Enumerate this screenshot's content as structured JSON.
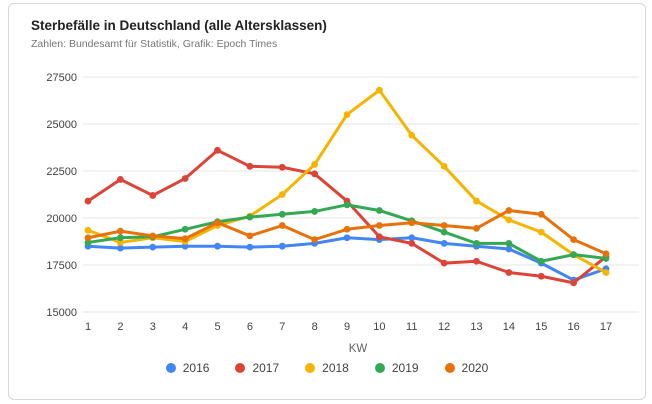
{
  "chart_data": {
    "type": "line",
    "title": "Sterbefälle in Deutschland (alle Altersklassen)",
    "subtitle": "Zahlen: Bundesamt für Statistik, Grafik: Epoch Times",
    "xlabel": "KW",
    "x": [
      1,
      2,
      3,
      4,
      5,
      6,
      7,
      8,
      9,
      10,
      11,
      12,
      13,
      14,
      15,
      16,
      17
    ],
    "ylim": [
      15000,
      27500
    ],
    "yticks": [
      15000,
      17500,
      20000,
      22500,
      25000,
      27500
    ],
    "grid": true,
    "legend_position": "bottom",
    "series": [
      {
        "name": "2016",
        "color": "#4285F4",
        "values": [
          18500,
          18400,
          18450,
          18500,
          18500,
          18450,
          18500,
          18650,
          18950,
          18850,
          18950,
          18650,
          18500,
          18350,
          17600,
          16700,
          17300
        ]
      },
      {
        "name": "2017",
        "color": "#DB4437",
        "values": [
          20900,
          22050,
          21200,
          22100,
          23600,
          22750,
          22700,
          22350,
          20900,
          19000,
          18650,
          17600,
          17700,
          17100,
          16900,
          16550,
          17950
        ]
      },
      {
        "name": "2018",
        "color": "#F4B400",
        "values": [
          19350,
          18700,
          18950,
          18750,
          19600,
          20100,
          21250,
          22850,
          25500,
          26800,
          24400,
          22750,
          20900,
          19900,
          19250,
          18050,
          17100
        ]
      },
      {
        "name": "2019",
        "color": "#34A853",
        "values": [
          18700,
          18950,
          19000,
          19400,
          19800,
          20050,
          20200,
          20350,
          20700,
          20400,
          19850,
          19250,
          18650,
          18650,
          17700,
          18050,
          17850
        ]
      },
      {
        "name": "2020",
        "color": "#E8710A",
        "values": [
          18950,
          19300,
          19050,
          18900,
          19750,
          19050,
          19600,
          18850,
          19400,
          19600,
          19750,
          19600,
          19450,
          20400,
          20200,
          18850,
          18100
        ]
      }
    ]
  },
  "theme": {
    "grid_color": "#E6E6E6",
    "axis_text_color": "#424242",
    "axis_title_color": "#616161",
    "title_color": "#212121",
    "subtitle_color": "#757575",
    "border_color": "#D7D7D7",
    "background": "#FFFFFF"
  }
}
